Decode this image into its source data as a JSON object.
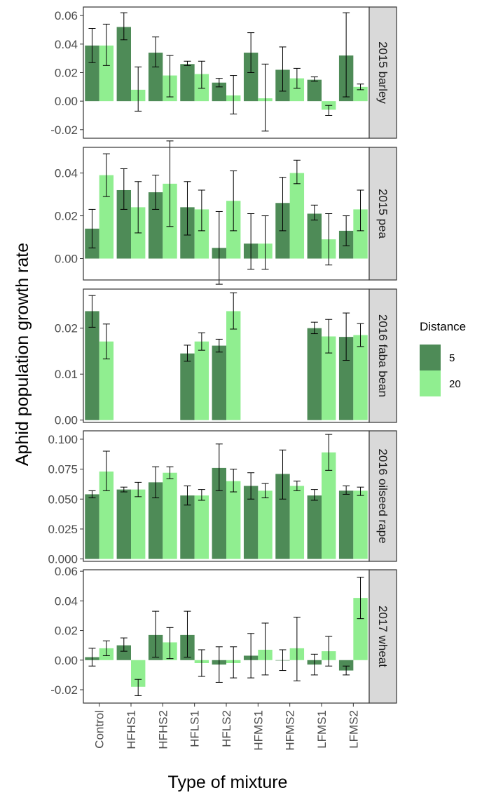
{
  "chart_data": {
    "type": "bar",
    "xlabel": "Type of mixture",
    "ylabel": "Aphid population growth rate",
    "categories": [
      "Control",
      "HFHS1",
      "HFHS2",
      "HFLS1",
      "HFLS2",
      "HFMS1",
      "HFMS2",
      "LFMS1",
      "LFMS2"
    ],
    "legend": {
      "title": "Distance",
      "position": "right",
      "entries": [
        {
          "label": "5",
          "color": "#4e8b57"
        },
        {
          "label": "20",
          "color": "#90ee90"
        }
      ]
    },
    "panels": [
      {
        "strip": "2015 barley",
        "ylim": [
          -0.026,
          0.066
        ],
        "yticks": [
          -0.02,
          0.0,
          0.02,
          0.04,
          0.06
        ],
        "ytick_labels": [
          "-0.02",
          "0.00",
          "0.02",
          "0.04",
          "0.06"
        ],
        "series": [
          {
            "name": "5",
            "values": [
              0.039,
              0.052,
              0.034,
              0.026,
              0.013,
              0.034,
              0.022,
              0.015,
              0.032
            ],
            "err_low": [
              0.027,
              0.043,
              0.024,
              0.025,
              0.01,
              0.02,
              0.007,
              0.014,
              0.003
            ],
            "err_high": [
              0.051,
              0.062,
              0.045,
              0.028,
              0.016,
              0.048,
              0.038,
              0.017,
              0.062
            ]
          },
          {
            "name": "20",
            "values": [
              0.039,
              0.008,
              0.018,
              0.019,
              0.004,
              0.002,
              0.016,
              -0.006,
              0.01
            ],
            "err_low": [
              0.025,
              -0.007,
              0.003,
              0.009,
              -0.009,
              -0.021,
              0.009,
              -0.01,
              0.008
            ],
            "err_high": [
              0.054,
              0.024,
              0.032,
              0.028,
              0.018,
              0.026,
              0.023,
              -0.003,
              0.012
            ]
          }
        ]
      },
      {
        "strip": "2015 pea",
        "ylim": [
          -0.01,
          0.052
        ],
        "yticks": [
          0.0,
          0.02,
          0.04
        ],
        "ytick_labels": [
          "0.00",
          "0.02",
          "0.04"
        ],
        "series": [
          {
            "name": "5",
            "values": [
              0.014,
              0.032,
              0.031,
              0.024,
              0.005,
              0.007,
              0.026,
              0.021,
              0.013
            ],
            "err_low": [
              0.005,
              0.023,
              0.023,
              0.011,
              -0.012,
              -0.005,
              0.013,
              0.018,
              0.006
            ],
            "err_high": [
              0.023,
              0.042,
              0.039,
              0.036,
              0.022,
              0.021,
              0.038,
              0.025,
              0.02
            ]
          },
          {
            "name": "20",
            "values": [
              0.039,
              0.024,
              0.035,
              0.023,
              0.027,
              0.007,
              0.04,
              0.009,
              0.023
            ],
            "err_low": [
              0.029,
              0.012,
              0.015,
              0.013,
              0.013,
              -0.005,
              0.035,
              -0.003,
              0.013
            ],
            "err_high": [
              0.049,
              0.036,
              0.055,
              0.032,
              0.041,
              0.02,
              0.046,
              0.021,
              0.032
            ]
          }
        ]
      },
      {
        "strip": "2016 faba bean",
        "ylim": [
          -0.0005,
          0.0285
        ],
        "yticks": [
          0.0,
          0.01,
          0.02
        ],
        "ytick_labels": [
          "0.00",
          "0.01",
          "0.02"
        ],
        "series": [
          {
            "name": "5",
            "values": [
              0.0237,
              null,
              null,
              0.0145,
              0.0162,
              null,
              null,
              0.02,
              0.0181
            ],
            "err_low": [
              0.0202,
              null,
              null,
              0.0128,
              0.0148,
              null,
              null,
              0.0188,
              0.013
            ],
            "err_high": [
              0.0271,
              null,
              null,
              0.0163,
              0.0176,
              null,
              null,
              0.0213,
              0.0233
            ]
          },
          {
            "name": "20",
            "values": [
              0.0171,
              null,
              null,
              0.0171,
              0.0237,
              null,
              null,
              0.0182,
              0.0185
            ],
            "err_low": [
              0.0133,
              null,
              null,
              0.0152,
              0.0198,
              null,
              null,
              0.0146,
              0.016
            ],
            "err_high": [
              0.0209,
              null,
              null,
              0.019,
              0.0277,
              null,
              null,
              0.0219,
              0.021
            ]
          }
        ]
      },
      {
        "strip": "2016 oilseed rape",
        "ylim": [
          -0.002,
          0.107
        ],
        "yticks": [
          0.0,
          0.025,
          0.05,
          0.075,
          0.1
        ],
        "ytick_labels": [
          "0.000",
          "0.025",
          "0.050",
          "0.075",
          "0.100"
        ],
        "series": [
          {
            "name": "5",
            "values": [
              0.054,
              0.058,
              0.064,
              0.053,
              0.076,
              0.061,
              0.071,
              0.053,
              0.057
            ],
            "err_low": [
              0.051,
              0.056,
              0.051,
              0.045,
              0.057,
              0.05,
              0.05,
              0.049,
              0.054
            ],
            "err_high": [
              0.057,
              0.06,
              0.077,
              0.061,
              0.096,
              0.072,
              0.091,
              0.058,
              0.061
            ]
          },
          {
            "name": "20",
            "values": [
              0.073,
              0.058,
              0.072,
              0.053,
              0.065,
              0.057,
              0.061,
              0.089,
              0.057
            ],
            "err_low": [
              0.057,
              0.052,
              0.067,
              0.049,
              0.056,
              0.051,
              0.057,
              0.074,
              0.053
            ],
            "err_high": [
              0.09,
              0.064,
              0.077,
              0.058,
              0.075,
              0.063,
              0.065,
              0.104,
              0.06
            ]
          }
        ]
      },
      {
        "strip": "2017 wheat",
        "ylim": [
          -0.029,
          0.061
        ],
        "yticks": [
          -0.02,
          0.0,
          0.02,
          0.04,
          0.06
        ],
        "ytick_labels": [
          "-0.02",
          "0.00",
          "0.02",
          "0.04",
          "0.06"
        ],
        "series": [
          {
            "name": "5",
            "values": [
              0.002,
              0.01,
              0.017,
              0.017,
              -0.003,
              0.003,
              0.0,
              -0.003,
              -0.007
            ],
            "err_low": [
              -0.004,
              0.006,
              0.002,
              0.002,
              -0.015,
              -0.012,
              -0.007,
              -0.01,
              -0.01
            ],
            "err_high": [
              0.008,
              0.015,
              0.033,
              0.033,
              0.009,
              0.018,
              0.007,
              0.004,
              -0.004
            ]
          },
          {
            "name": "20",
            "values": [
              0.008,
              -0.018,
              0.012,
              -0.002,
              -0.002,
              0.007,
              0.008,
              0.006,
              0.042
            ],
            "err_low": [
              0.003,
              -0.024,
              0.001,
              -0.011,
              -0.012,
              -0.01,
              -0.014,
              -0.004,
              0.028
            ],
            "err_high": [
              0.013,
              -0.013,
              0.022,
              0.007,
              0.009,
              0.025,
              0.029,
              0.016,
              0.056
            ]
          }
        ]
      }
    ]
  }
}
